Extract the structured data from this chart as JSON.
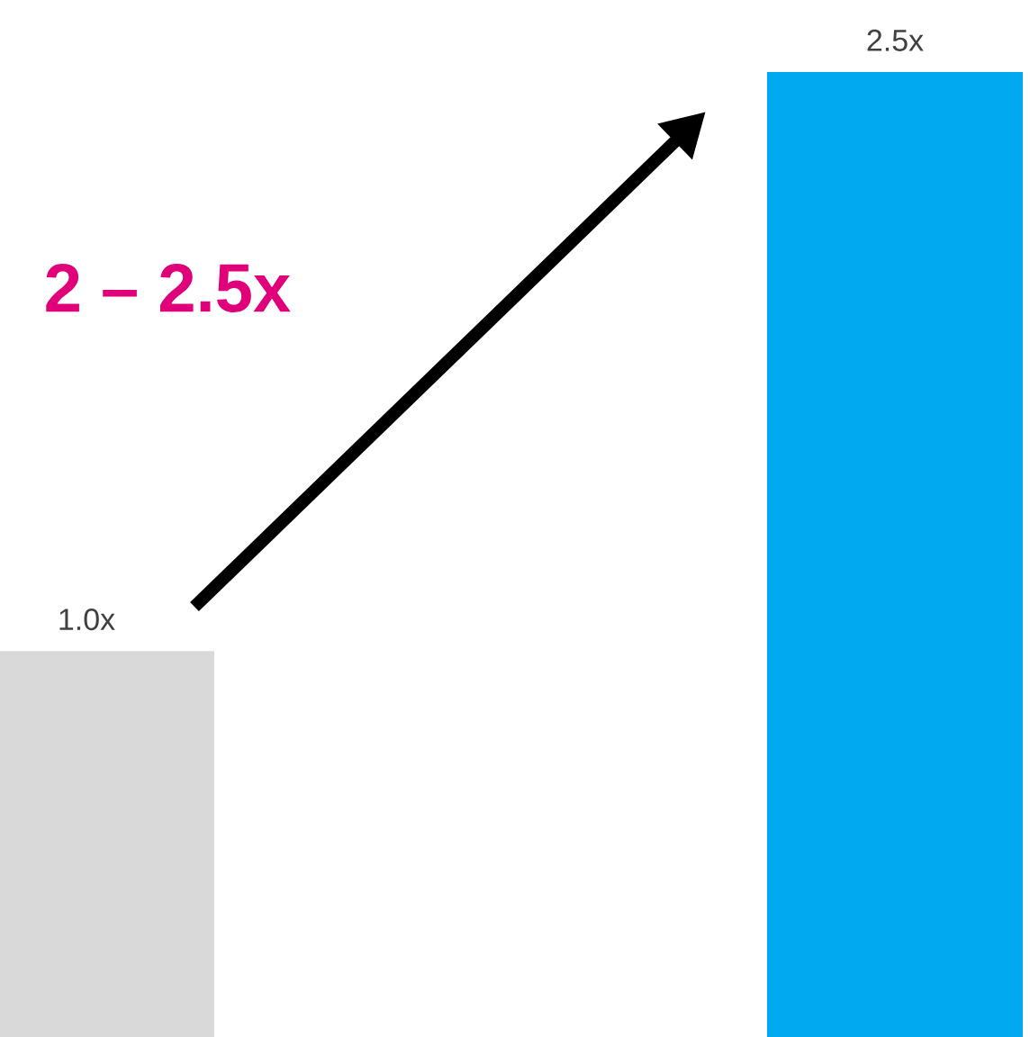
{
  "chart_data": {
    "type": "bar",
    "categories": [
      null,
      null
    ],
    "values": [
      1.0,
      2.5
    ],
    "colors": [
      "#d9d9d9",
      "#00a9f0"
    ],
    "value_labels": [
      "1.0x",
      "2.5x"
    ],
    "annotations": [
      "2 – 2.5x"
    ]
  }
}
